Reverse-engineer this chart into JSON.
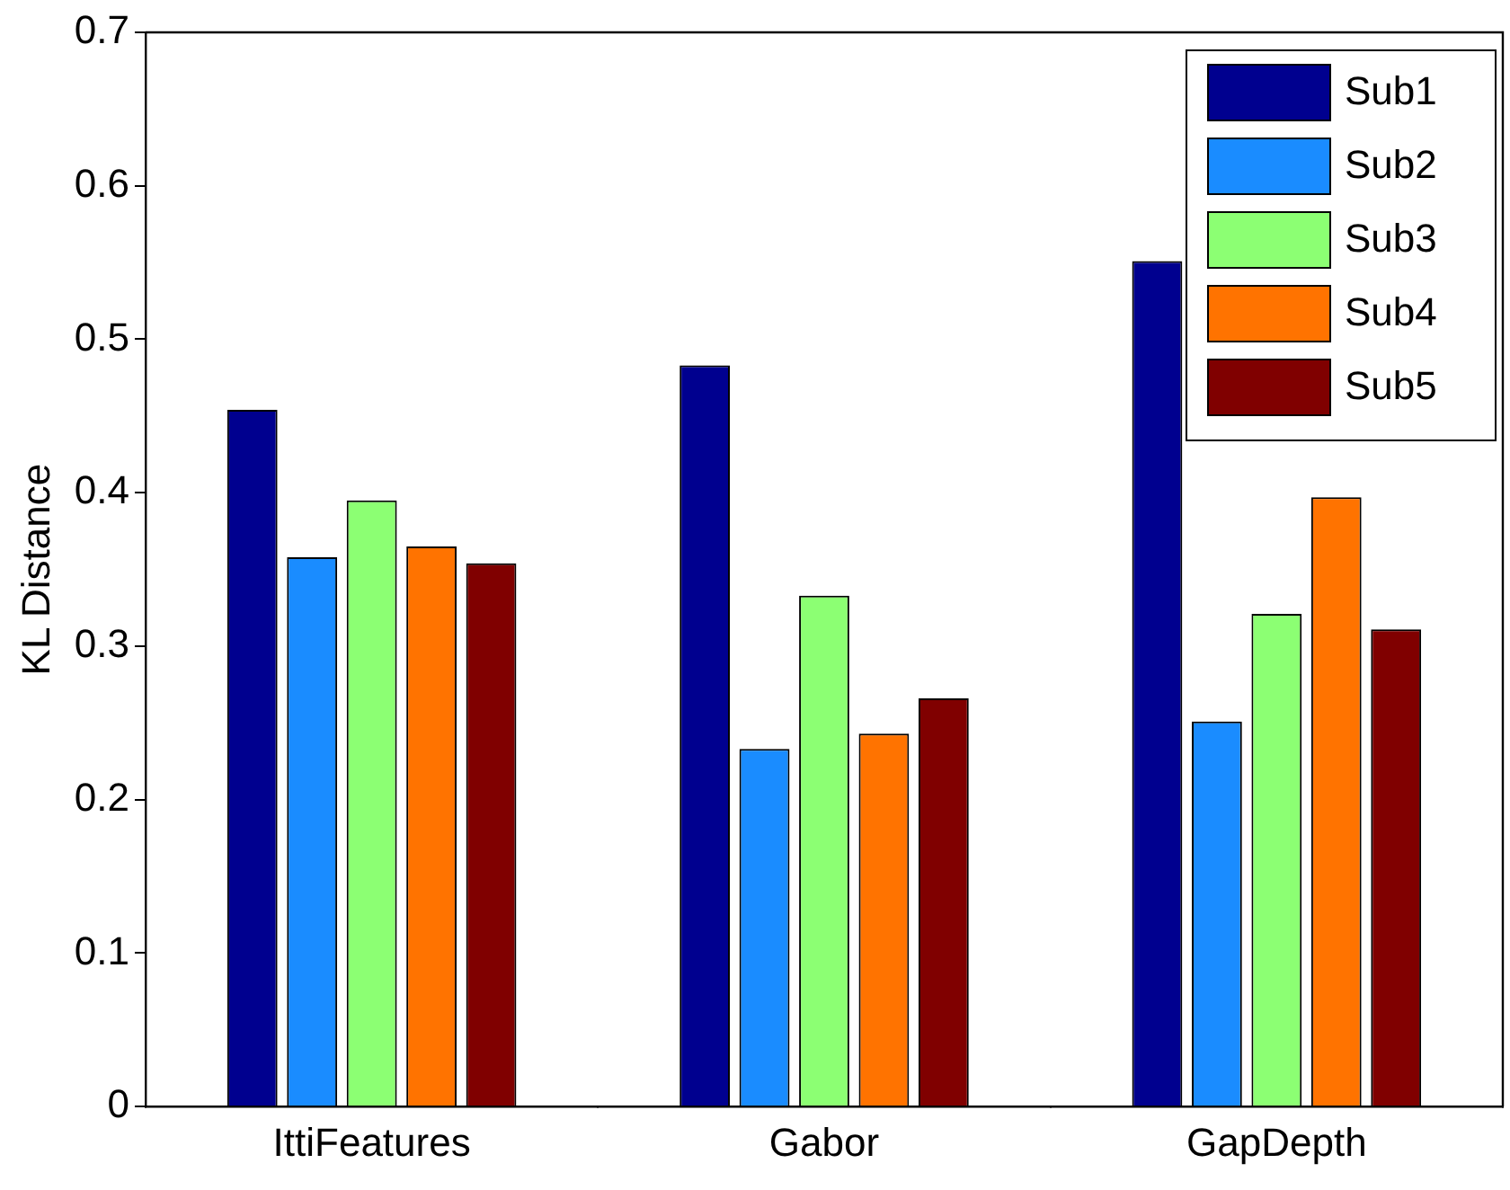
{
  "chart_data": {
    "type": "bar",
    "ylabel": "KL Distance",
    "categories": [
      "IttiFeatures",
      "Gabor",
      "GapDepth"
    ],
    "series": [
      {
        "name": "Sub1",
        "color": "#00008f",
        "values": [
          0.454,
          0.483,
          0.551
        ]
      },
      {
        "name": "Sub2",
        "color": "#1a8cff",
        "values": [
          0.358,
          0.233,
          0.251
        ]
      },
      {
        "name": "Sub3",
        "color": "#8cff73",
        "values": [
          0.395,
          0.333,
          0.321
        ]
      },
      {
        "name": "Sub4",
        "color": "#ff7300",
        "values": [
          0.365,
          0.243,
          0.397
        ]
      },
      {
        "name": "Sub5",
        "color": "#800000",
        "values": [
          0.354,
          0.266,
          0.311
        ]
      }
    ],
    "ylim": [
      0,
      0.7
    ],
    "yticks": [
      0,
      0.1,
      0.2,
      0.3,
      0.4,
      0.5,
      0.6,
      0.7
    ],
    "grid": false,
    "legend": "top right"
  }
}
